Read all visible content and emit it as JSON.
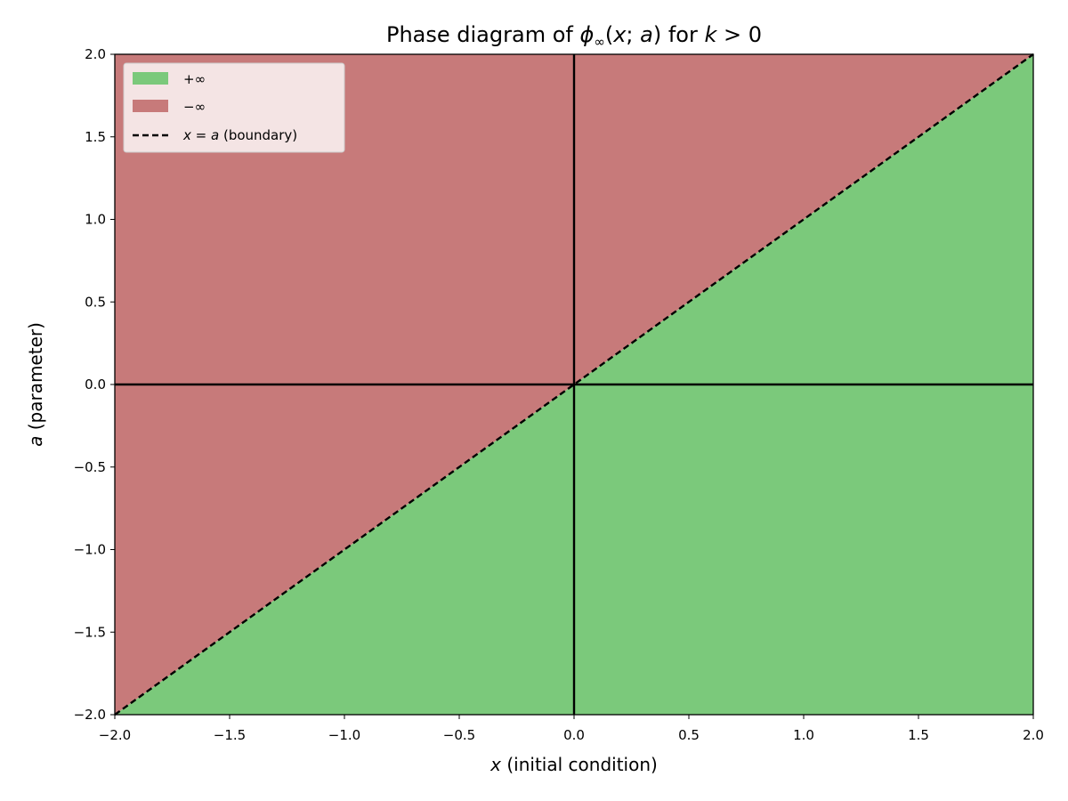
{
  "chart_data": {
    "type": "area",
    "title": {
      "prefix": "Phase diagram of ",
      "func": "ϕ",
      "sub": "∞",
      "args_open": "(",
      "arg1": "x",
      "sep": "; ",
      "arg2": "a",
      "args_close": ")",
      "mid": " for ",
      "cond_var": "k",
      "cond_rest": " > 0"
    },
    "xlabel": {
      "var": "x",
      "text": " (initial condition)"
    },
    "ylabel": {
      "var": "a",
      "text": " (parameter)"
    },
    "xlim": [
      -2.0,
      2.0
    ],
    "ylim": [
      -2.0,
      2.0
    ],
    "x_ticks": [
      -2.0,
      -1.5,
      -1.0,
      -0.5,
      0.0,
      0.5,
      1.0,
      1.5,
      2.0
    ],
    "y_ticks": [
      -2.0,
      -1.5,
      -1.0,
      -0.5,
      0.0,
      0.5,
      1.0,
      1.5,
      2.0
    ],
    "x_tick_labels": [
      "−2.0",
      "−1.5",
      "−1.0",
      "−0.5",
      "0.0",
      "0.5",
      "1.0",
      "1.5",
      "2.0"
    ],
    "y_tick_labels": [
      "−2.0",
      "−1.5",
      "−1.0",
      "−0.5",
      "0.0",
      "0.5",
      "1.0",
      "1.5",
      "2.0"
    ],
    "regions": [
      {
        "name": "+∞",
        "condition": "x > a",
        "color": "#7bc97b"
      },
      {
        "name": "−∞",
        "condition": "x < a",
        "color": "#c77a7a"
      }
    ],
    "boundary": {
      "label_var1": "x",
      "label_eq": " = ",
      "label_var2": "a",
      "label_rest": " (boundary)",
      "x": [
        -2.0,
        2.0
      ],
      "y": [
        -2.0,
        2.0
      ],
      "style": "dashed",
      "color": "#000000"
    },
    "reference_lines": {
      "x0": 0.0,
      "y0": 0.0,
      "color": "#000000"
    },
    "grid": false,
    "legend_position": "top-left"
  }
}
